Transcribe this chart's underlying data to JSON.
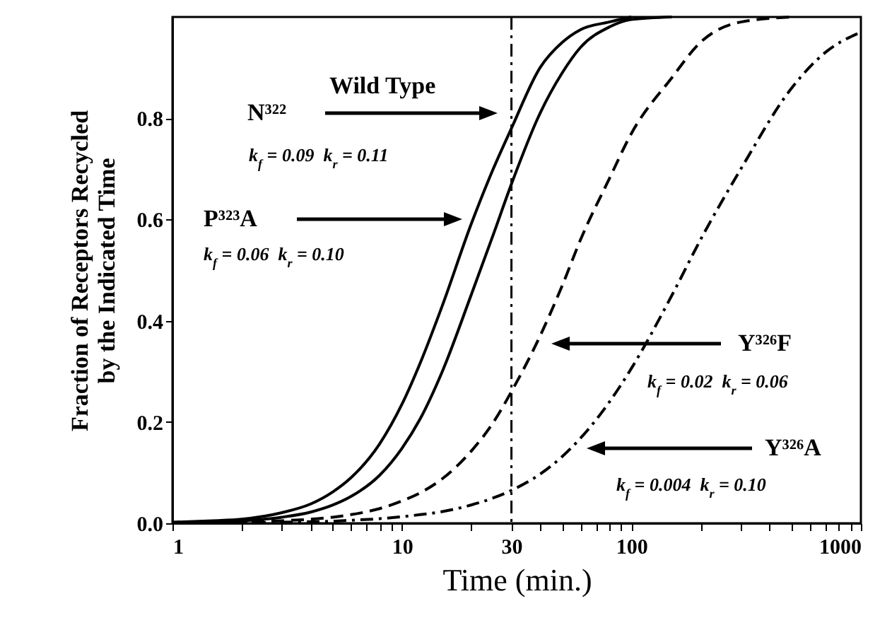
{
  "chart_data": {
    "type": "line",
    "xlabel": "Time (min.)",
    "ylabel": "Fraction of Receptors Recycled\nby the Indicated Time",
    "log": "x",
    "xlim": [
      1,
      1000
    ],
    "xticks": [
      1,
      {
        "value": 2,
        "label": null
      },
      {
        "value": 3,
        "label": null
      },
      {
        "value": 4,
        "label": null
      },
      {
        "value": 5,
        "label": null
      },
      {
        "value": 6,
        "label": null
      },
      {
        "value": 7,
        "label": null
      },
      {
        "value": 8,
        "label": null
      },
      {
        "value": 9,
        "label": null
      },
      10,
      {
        "value": 20,
        "label": null
      },
      30,
      {
        "value": 40,
        "label": null
      },
      {
        "value": 50,
        "label": null
      },
      {
        "value": 60,
        "label": null
      },
      {
        "value": 70,
        "label": null
      },
      {
        "value": 80,
        "label": null
      },
      {
        "value": 90,
        "label": null
      },
      100,
      {
        "value": 200,
        "label": null
      },
      {
        "value": 300,
        "label": null
      },
      {
        "value": 400,
        "label": null
      },
      {
        "value": 500,
        "label": null
      },
      {
        "value": 600,
        "label": null
      },
      {
        "value": 700,
        "label": null
      },
      {
        "value": 800,
        "label": null
      },
      {
        "value": 900,
        "label": null
      },
      1000
    ],
    "ylim": [
      0,
      1
    ],
    "yticks": [
      {
        "value": 0,
        "label": "0.0"
      },
      {
        "value": 0.2,
        "label": "0.2"
      },
      {
        "value": 0.4,
        "label": "0.4"
      },
      {
        "value": 0.6,
        "label": "0.6"
      },
      {
        "value": 0.8,
        "label": "0.8"
      }
    ],
    "x": [
      1,
      1.5,
      2,
      3,
      4,
      5,
      6,
      8,
      10,
      12,
      15,
      20,
      25,
      30,
      40,
      50,
      60,
      80,
      100,
      150,
      200,
      300,
      500,
      700,
      1000
    ],
    "series": [
      {
        "color": "#000000",
        "line_style": "solid",
        "values": [
          0.002,
          0.005,
          0.008,
          0.021,
          0.038,
          0.062,
          0.09,
          0.157,
          0.235,
          0.316,
          0.43,
          0.59,
          0.7,
          0.78,
          0.9,
          0.95,
          0.975,
          0.99,
          1.0,
          null,
          null,
          null,
          null,
          null,
          null
        ]
      },
      {
        "color": "#000000",
        "line_style": "solid",
        "values": [
          0.001,
          0.003,
          0.005,
          0.012,
          0.022,
          0.036,
          0.053,
          0.095,
          0.148,
          0.206,
          0.3,
          0.45,
          0.57,
          0.67,
          0.81,
          0.89,
          0.94,
          0.98,
          0.995,
          1.0,
          null,
          null,
          null,
          null,
          null
        ]
      },
      {
        "color": "#000000",
        "line_style": "dashed",
        "values": [
          0.001,
          0.001,
          0.002,
          0.005,
          0.008,
          0.012,
          0.017,
          0.029,
          0.044,
          0.06,
          0.088,
          0.142,
          0.199,
          0.26,
          0.37,
          0.47,
          0.56,
          0.68,
          0.77,
          0.88,
          0.95,
          0.99,
          1.0,
          null,
          null
        ]
      },
      {
        "color": "#000000",
        "line_style": "dashdot",
        "values": [
          0.0,
          0.0,
          0.001,
          0.002,
          0.003,
          0.004,
          0.006,
          0.009,
          0.013,
          0.017,
          0.023,
          0.036,
          0.05,
          0.065,
          0.097,
          0.132,
          0.168,
          0.239,
          0.306,
          0.45,
          0.56,
          0.7,
          0.86,
          0.93,
          0.97
        ]
      }
    ],
    "ref_lines": [
      {
        "axis": "x",
        "value": 30,
        "line_style": "dashdot",
        "color": "#000000"
      }
    ],
    "annotations": [
      "Wild Type",
      "N³²²",
      "k$_{f}$ = 0.09  k$_{r}$ = 0.11",
      "P³²³A",
      "k$_{f}$ = 0.06  k$_{r}$ = 0.10",
      "Y³²⁶F",
      "k$_{f}$ = 0.02  k$_{r}$ = 0.06",
      "Y³²⁶A",
      "k$_{f}$ = 0.004  k$_{r}$ = 0.10"
    ]
  }
}
